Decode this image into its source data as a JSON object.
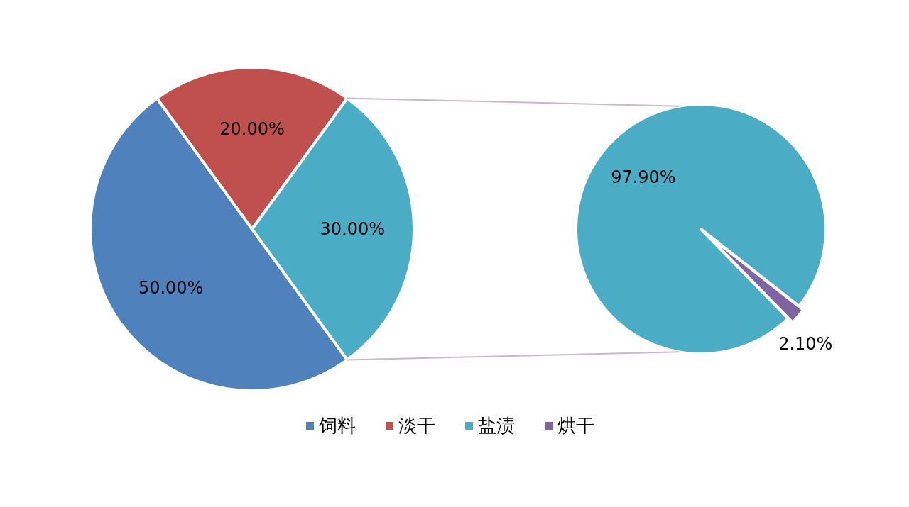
{
  "chart_data": [
    {
      "type": "pie",
      "categories": [
        "饲料",
        "淡干",
        "盐渍"
      ],
      "values": [
        50,
        20,
        30
      ],
      "colors": [
        "#4f81bd",
        "#c0504d",
        "#4bacc6"
      ],
      "value_labels": [
        "50.00%",
        "20.00%",
        "30.00%"
      ],
      "legend": "bottom"
    },
    {
      "type": "pie",
      "categories": [
        null,
        "烘干"
      ],
      "values": [
        97.9,
        2.1
      ],
      "colors": [
        "#4bacc6",
        "#8064a2"
      ],
      "value_labels": [
        "97.90%",
        "2.10%"
      ],
      "legend": "bottom"
    }
  ]
}
